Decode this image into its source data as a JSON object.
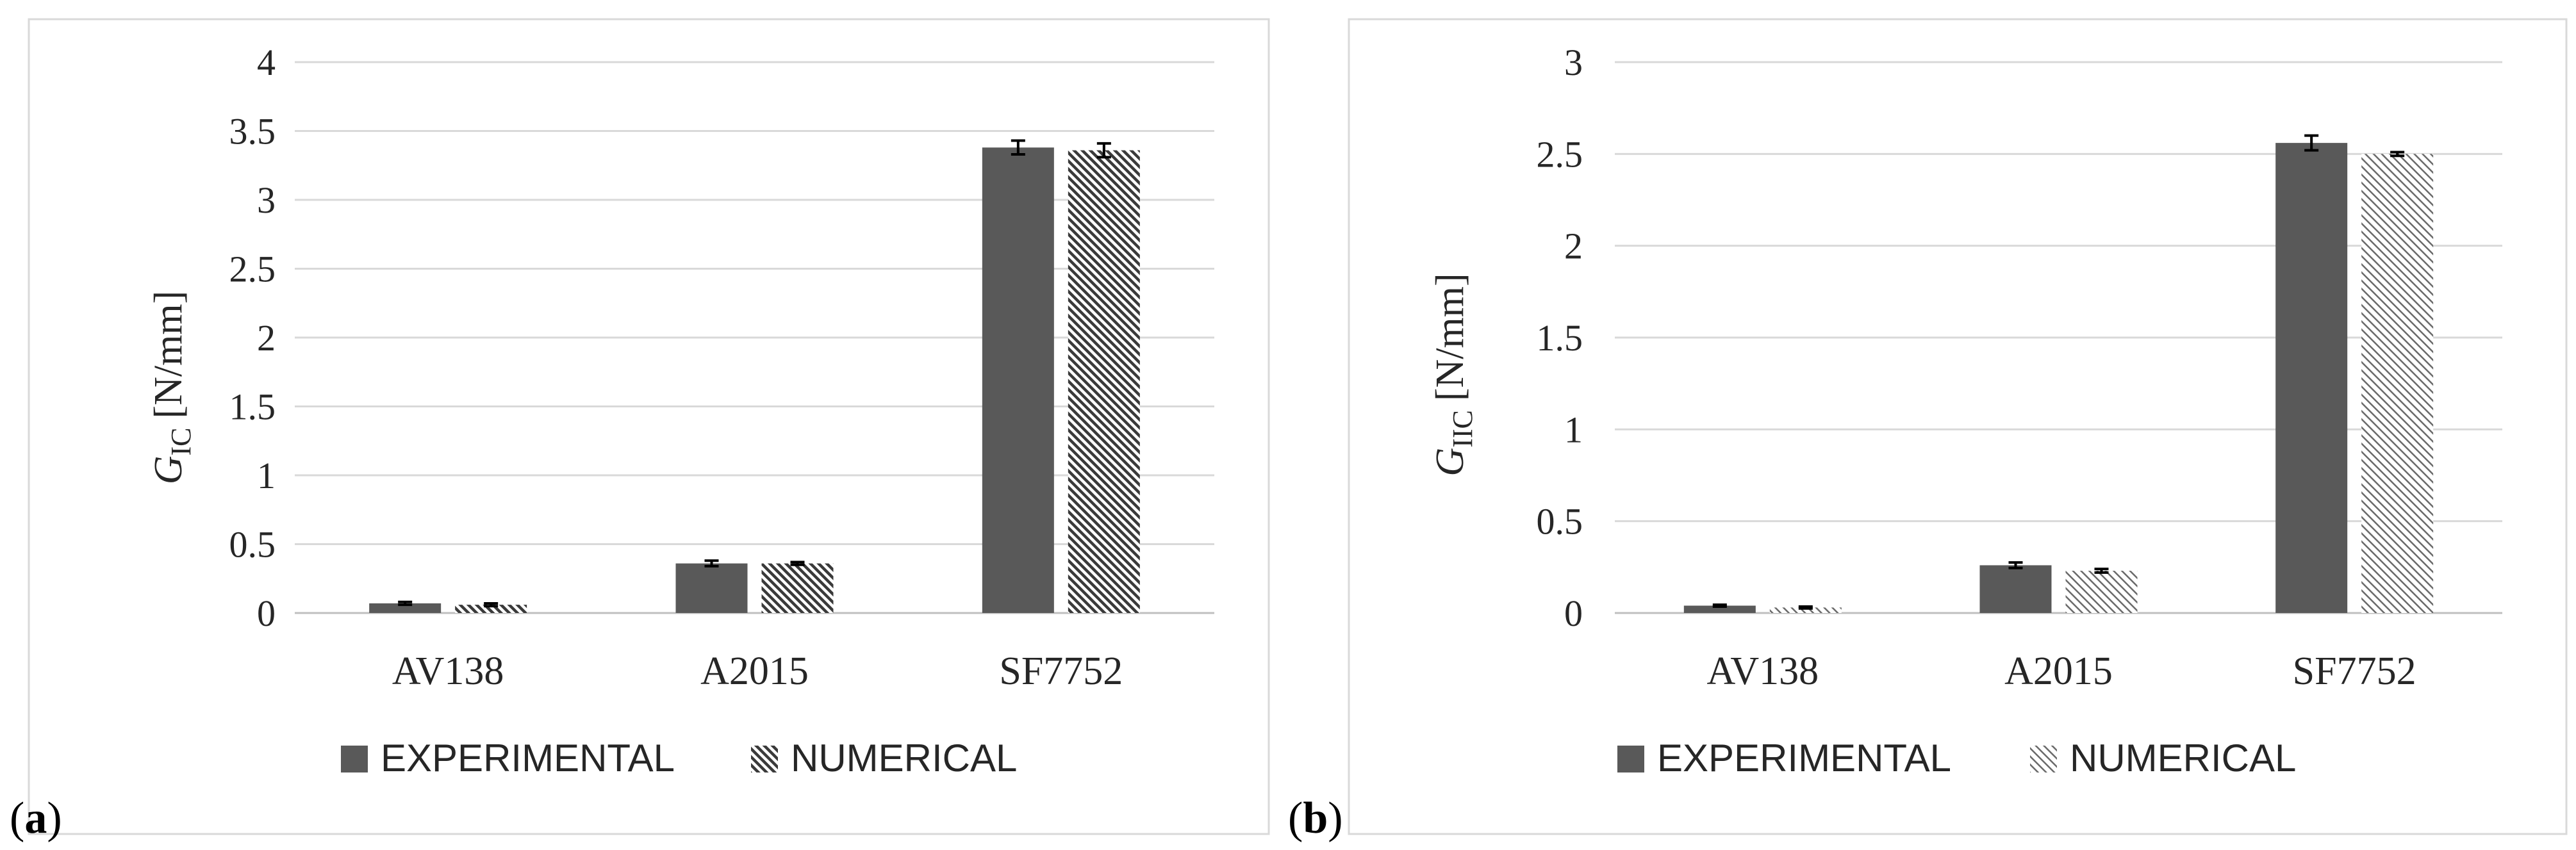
{
  "colors": {
    "experimental": "#595959",
    "frame": "#d9d9d9",
    "grid": "#d9d9d9",
    "axis": "#bfbfbf",
    "text": "#262626"
  },
  "chart_data": [
    {
      "panel_label": "a",
      "type": "bar",
      "ylabel_symbol": "G",
      "ylabel_subscript": "IC",
      "ylabel_unit": "[N/mm]",
      "categories": [
        "AV138",
        "A2015",
        "SF7752"
      ],
      "series": [
        {
          "name": "EXPERIMENTAL",
          "pattern": "solid",
          "values": [
            0.07,
            0.36,
            3.38
          ],
          "errors": [
            0.01,
            0.02,
            0.05
          ]
        },
        {
          "name": "NUMERICAL",
          "pattern": "hatch-dense",
          "values": [
            0.06,
            0.36,
            3.36
          ],
          "errors": [
            0.01,
            0.01,
            0.05
          ]
        }
      ],
      "ylim": [
        0,
        4
      ],
      "yticks": [
        0,
        0.5,
        1,
        1.5,
        2,
        2.5,
        3,
        3.5,
        4
      ],
      "ytick_labels": [
        "0",
        "0.5",
        "1",
        "1.5",
        "2",
        "2.5",
        "3",
        "3.5",
        "4"
      ],
      "grid": true,
      "legend_position": "bottom"
    },
    {
      "panel_label": "b",
      "type": "bar",
      "ylabel_symbol": "G",
      "ylabel_subscript": "IIC",
      "ylabel_unit": "[N/mm]",
      "categories": [
        "AV138",
        "A2015",
        "SF7752"
      ],
      "series": [
        {
          "name": "EXPERIMENTAL",
          "pattern": "solid",
          "values": [
            0.04,
            0.26,
            2.56
          ],
          "errors": [
            0.005,
            0.015,
            0.04
          ]
        },
        {
          "name": "NUMERICAL",
          "pattern": "hatch-light",
          "values": [
            0.03,
            0.23,
            2.5
          ],
          "errors": [
            0.005,
            0.01,
            0.01
          ]
        }
      ],
      "ylim": [
        0,
        3
      ],
      "yticks": [
        0,
        0.5,
        1,
        1.5,
        2,
        2.5,
        3
      ],
      "ytick_labels": [
        "0",
        "0.5",
        "1",
        "1.5",
        "2",
        "2.5",
        "3"
      ],
      "grid": true,
      "legend_position": "bottom"
    }
  ]
}
